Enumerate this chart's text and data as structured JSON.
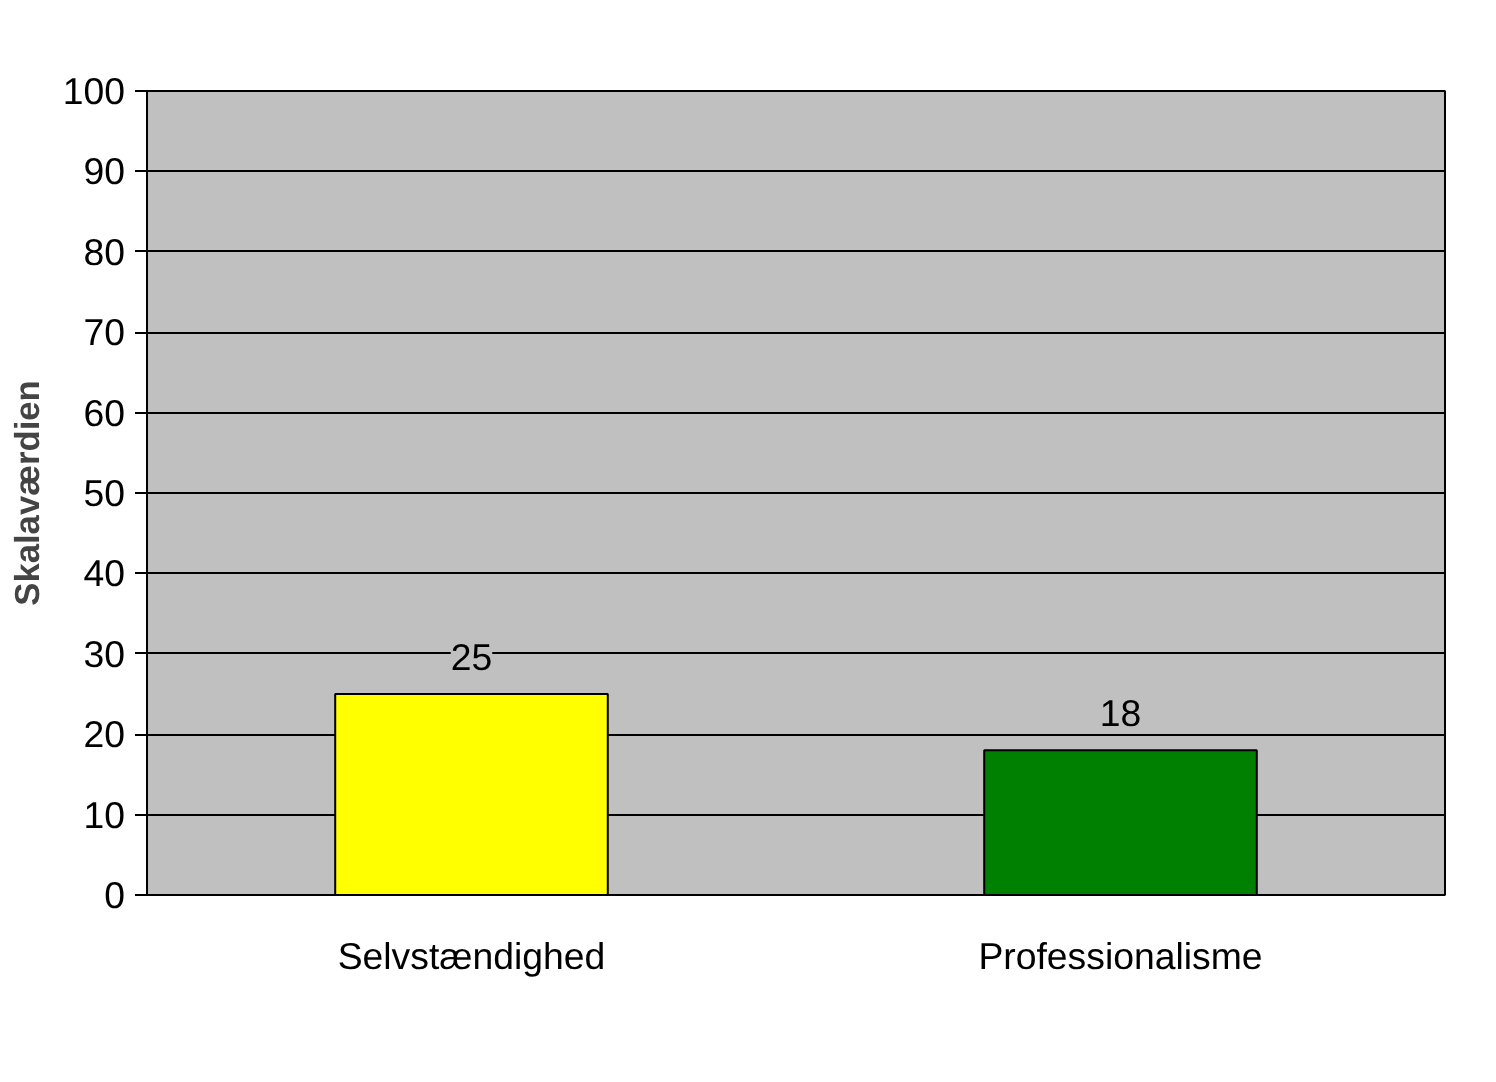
{
  "chart_data": {
    "type": "bar",
    "ylabel": "Skalaværdien",
    "categories": [
      "Selvstændighed",
      "Professionalisme"
    ],
    "values": [
      25,
      18
    ],
    "colors": [
      "#ffff00",
      "#008000"
    ],
    "ylim": [
      0,
      100
    ],
    "yticks": [
      0,
      10,
      20,
      30,
      40,
      50,
      60,
      70,
      80,
      90,
      100
    ],
    "grid": "y",
    "data_labels": true
  }
}
